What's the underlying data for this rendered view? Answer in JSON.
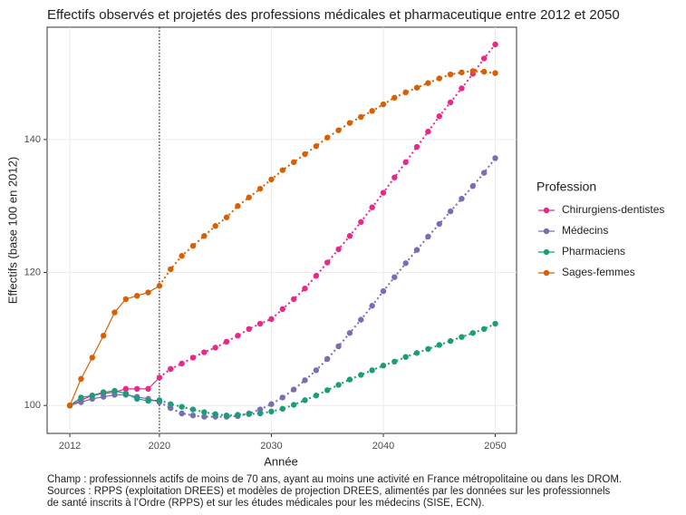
{
  "chart_data": {
    "type": "line",
    "title": "Effectifs observés et projetés des professions médicales et pharmaceutique entre 2012 et 2050",
    "x_label": "Année",
    "y_label": "Effectifs (base 100 en 2012)",
    "legend_title": "Profession",
    "legend": "right",
    "grid": true,
    "vline": 2020,
    "xlim": [
      2009.97,
      2051.9
    ],
    "ylim": [
      95.8,
      156.9
    ],
    "xticks": [
      2012,
      2020,
      2030,
      2040,
      2050
    ],
    "yticks": [
      100,
      120,
      140
    ],
    "x": [
      2012,
      2013,
      2014,
      2015,
      2016,
      2017,
      2018,
      2019,
      2020,
      2021,
      2022,
      2023,
      2024,
      2025,
      2026,
      2027,
      2028,
      2029,
      2030,
      2031,
      2032,
      2033,
      2034,
      2035,
      2036,
      2037,
      2038,
      2039,
      2040,
      2041,
      2042,
      2043,
      2044,
      2045,
      2046,
      2047,
      2048,
      2049,
      2050
    ],
    "series": [
      {
        "name": "Chirurgiens-dentistes",
        "color": "#e7298a",
        "values": [
          100,
          100.8,
          101.5,
          101.8,
          102,
          102.5,
          102.5,
          102.5,
          104.2,
          105.5,
          106.3,
          107.2,
          108,
          108.7,
          109.6,
          110.5,
          111.5,
          112.3,
          113,
          114.5,
          116,
          117.6,
          119.5,
          121.5,
          123.5,
          125.5,
          127.6,
          129.8,
          132,
          134.3,
          136.6,
          138.9,
          141.2,
          143.5,
          145.6,
          147.7,
          149.9,
          152.2,
          154.3
        ]
      },
      {
        "name": "Médecins",
        "color": "#7570b3",
        "values": [
          100,
          100.5,
          101,
          101.3,
          101.6,
          101.6,
          101.3,
          101,
          100.5,
          99.6,
          98.8,
          98.5,
          98.3,
          98.3,
          98.3,
          98.4,
          98.8,
          99.4,
          100.2,
          101.2,
          102.4,
          103.8,
          105.3,
          107,
          108.9,
          110.9,
          112.9,
          115,
          117.2,
          119.3,
          121.4,
          123.4,
          125.4,
          127.3,
          129.2,
          131.1,
          133,
          135,
          137.2
        ]
      },
      {
        "name": "Pharmaciens",
        "color": "#1b9e77",
        "values": [
          100,
          101.2,
          101.5,
          102,
          102.2,
          101.8,
          101,
          100.7,
          100.8,
          100.2,
          99.8,
          99.4,
          99,
          98.7,
          98.5,
          98.6,
          98.7,
          98.8,
          99.1,
          99.5,
          100.1,
          100.8,
          101.5,
          102.3,
          103.1,
          103.9,
          104.6,
          105.3,
          106,
          106.6,
          107.3,
          107.9,
          108.5,
          109.1,
          109.7,
          110.3,
          110.9,
          111.5,
          112.3
        ]
      },
      {
        "name": "Sages-femmes",
        "color": "#d95f02",
        "values": [
          100,
          104,
          107.2,
          110.5,
          114,
          116,
          116.5,
          117,
          118,
          120.5,
          122.5,
          124,
          125.5,
          127,
          128.3,
          130,
          131.3,
          132.6,
          134,
          135.4,
          136.6,
          137.8,
          139,
          140.3,
          141.4,
          142.5,
          143.4,
          144.3,
          145.3,
          146.3,
          147.1,
          147.8,
          148.5,
          149.2,
          149.8,
          150.1,
          150.3,
          150.2,
          150
        ]
      }
    ],
    "caption": [
      "Champ : professionnels actifs de moins de 70 ans, ayant au moins une activité en France métropolitaine ou dans les DROM.",
      "Sources : RPPS (exploitation DREES) et modèles de projection DREES, alimentés par les données sur les professionnels",
      "de santé inscrits à l’Ordre (RPPS) et sur les études médicales pour les médecins (SISE, ECN)."
    ]
  }
}
